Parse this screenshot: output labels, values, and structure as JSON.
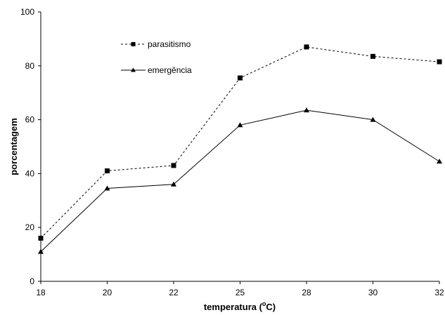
{
  "chart_data": {
    "type": "line",
    "title": "",
    "xlabel": "temperatura (",
    "xlabel_sup": "o",
    "xlabel_end": "C)",
    "ylabel": "porcentagem",
    "categories": [
      "18",
      "20",
      "22",
      "25",
      "28",
      "30",
      "32"
    ],
    "yticks": [
      "0",
      "20",
      "40",
      "60",
      "80",
      "100"
    ],
    "ylim": [
      0,
      100
    ],
    "grid": false,
    "legend_position": "top-left",
    "series": [
      {
        "name": "parasitismo",
        "values": [
          16,
          41,
          43,
          75.5,
          87,
          83.5,
          81.5
        ],
        "line_style": "dotted",
        "marker": "square",
        "color": "#000000"
      },
      {
        "name": "emergência",
        "values": [
          11,
          34.5,
          36,
          58,
          63.5,
          60,
          44.5
        ],
        "line_style": "solid",
        "marker": "triangle",
        "color": "#000000"
      }
    ]
  }
}
